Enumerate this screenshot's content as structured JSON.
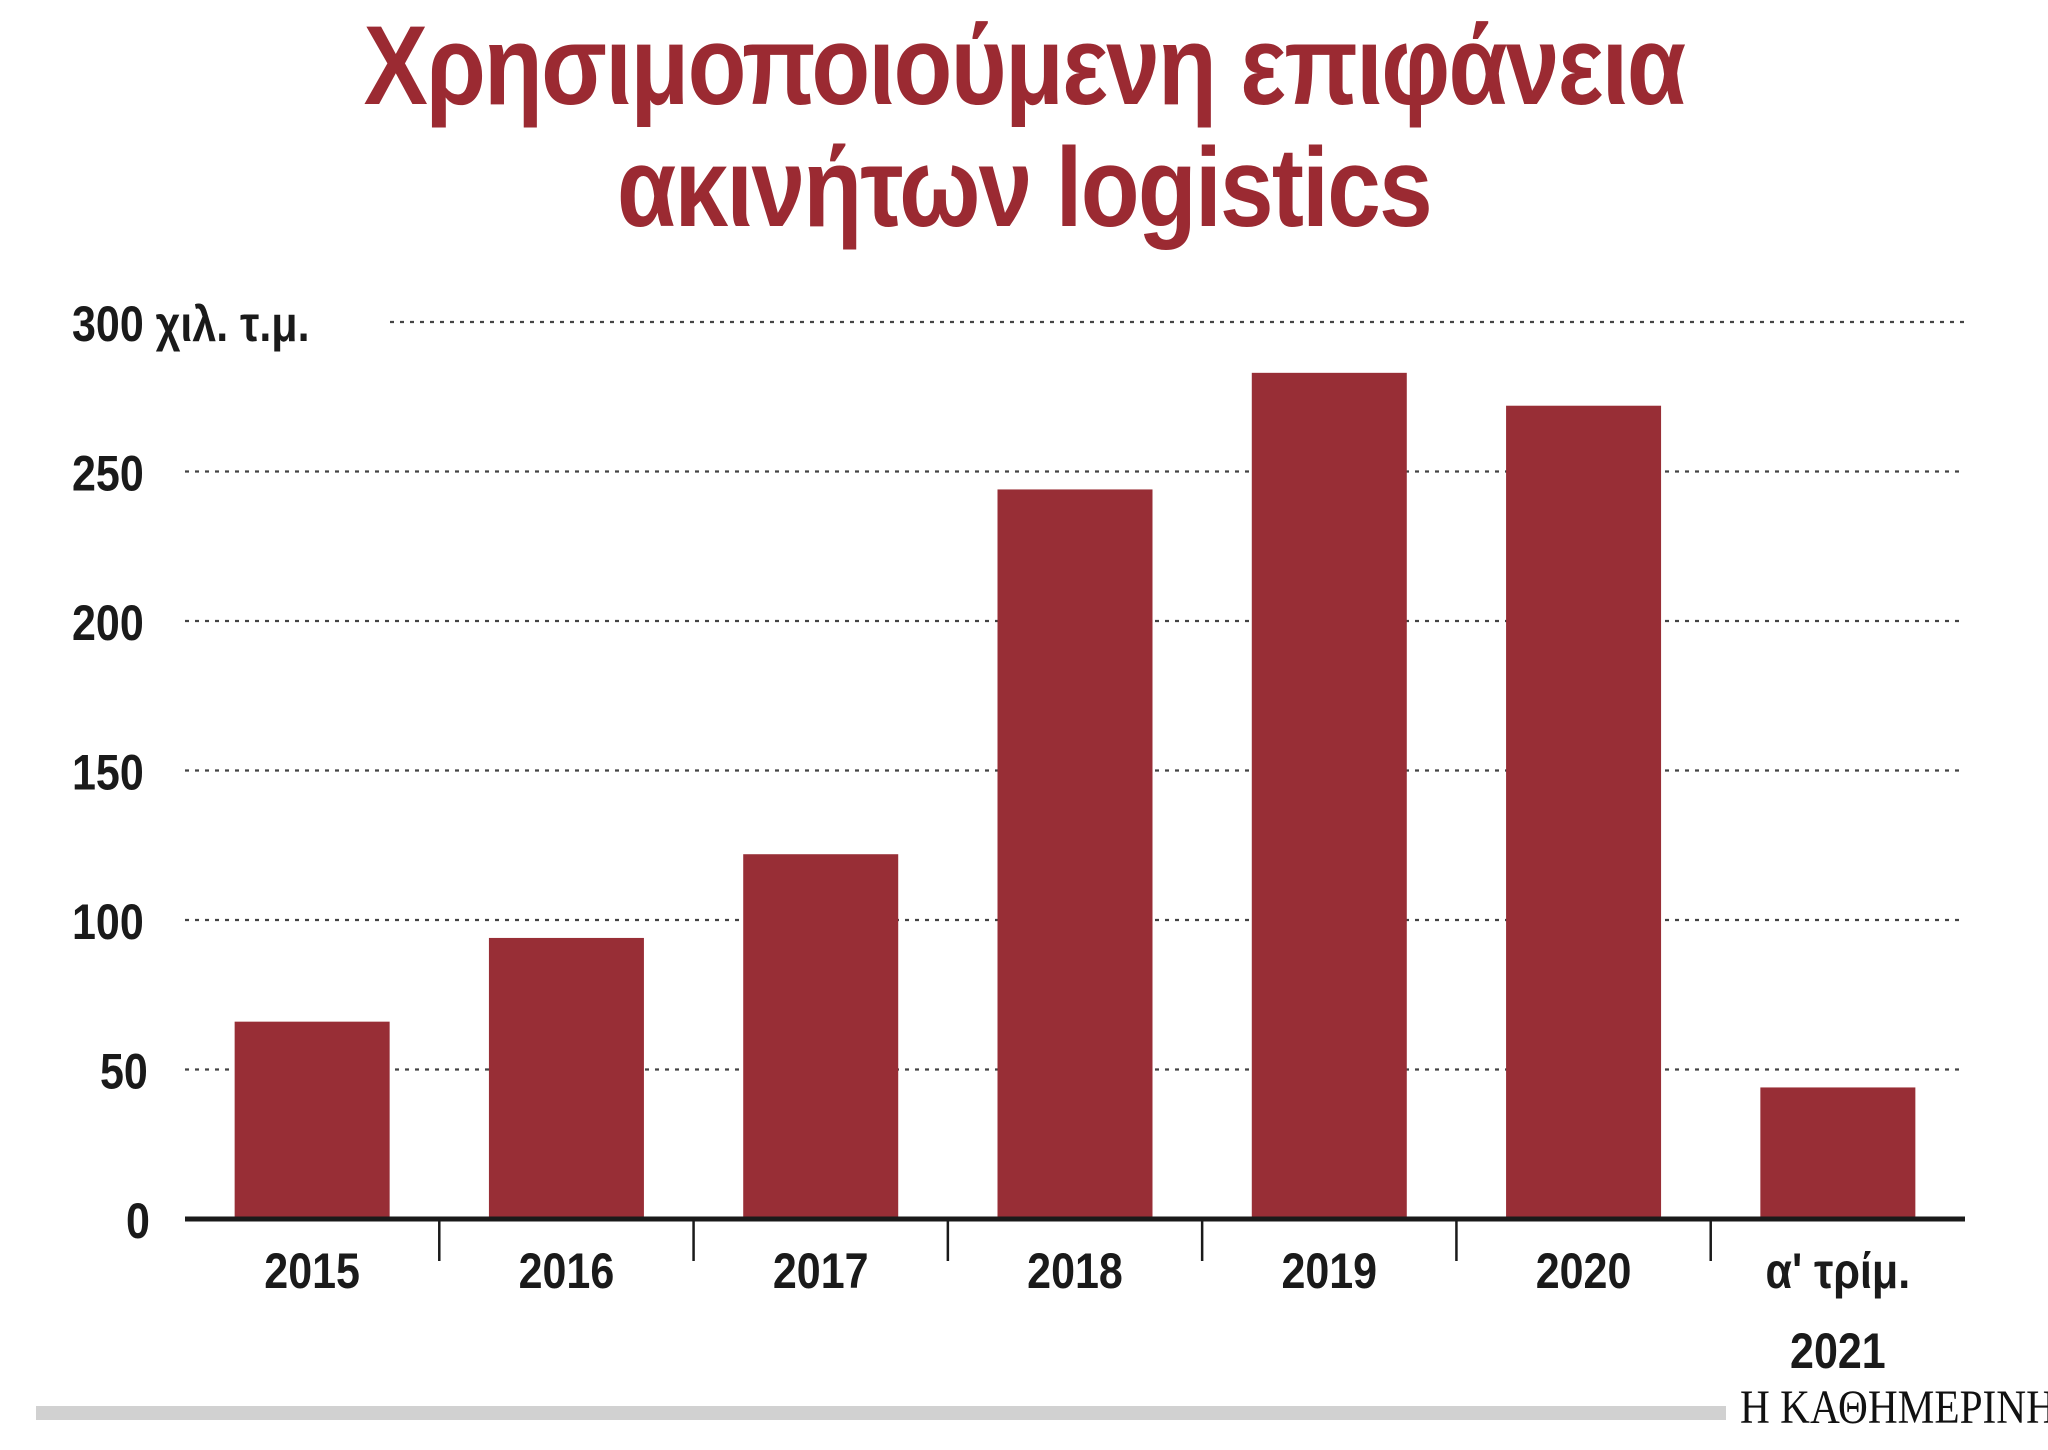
{
  "title_line1": "Χρησιμοποιούμενη επιφάνεια",
  "title_line2": "ακινήτων logistics",
  "source": "Η ΚΑΘΗΜΕΡΙΝΗ",
  "colors": {
    "bar": "#982e36",
    "title": "#9b2a32",
    "text": "#1a1a1a",
    "grid": "#444444",
    "axis": "#1a1a1a",
    "source_bar": "#d1d1d1"
  },
  "chart_data": {
    "type": "bar",
    "title": "Χρησιμοποιούμενη επιφάνεια ακινήτων logistics",
    "unit_label": "χιλ. τ.μ.",
    "categories": [
      [
        "2015"
      ],
      [
        "2016"
      ],
      [
        "2017"
      ],
      [
        "2018"
      ],
      [
        "2019"
      ],
      [
        "2020"
      ],
      [
        "α' τρίμ.",
        "2021"
      ]
    ],
    "values": [
      66,
      94,
      122,
      244,
      283,
      272,
      44
    ],
    "ylim": [
      0,
      300
    ],
    "yticks": [
      0,
      50,
      100,
      150,
      200,
      250,
      300
    ],
    "grid": "dotted horizontal",
    "legend": "none"
  }
}
